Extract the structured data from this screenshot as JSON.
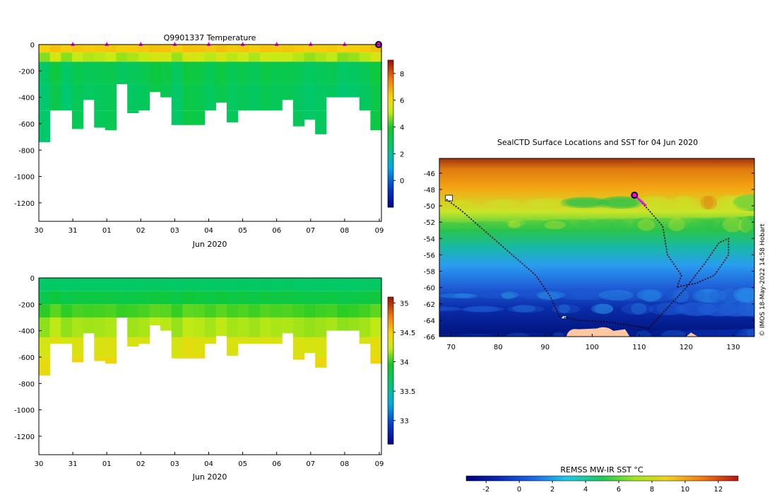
{
  "chart_data": [
    {
      "type": "heatmap",
      "title": "Q9901337  Temperature",
      "xlabel": "Jun 2020",
      "x_ticks": [
        "30",
        "31",
        "01",
        "02",
        "03",
        "04",
        "05",
        "06",
        "07",
        "08",
        "09"
      ],
      "y_ticks": [
        "0",
        "-200",
        "-400",
        "-600",
        "-800",
        "-1000",
        "-1200"
      ],
      "ylim": [
        -1340,
        0
      ],
      "profile_max_depth": [
        -740,
        -500,
        -500,
        -640,
        -420,
        -630,
        -650,
        -300,
        -520,
        -500,
        -360,
        -400,
        -610,
        -610,
        -610,
        -500,
        -440,
        -590,
        -500,
        -500,
        -500,
        -500,
        -420,
        -620,
        -570,
        -680,
        -400,
        -400,
        -400,
        -500,
        -650
      ],
      "surface_markers": [
        "31",
        "01",
        "02",
        "03",
        "04",
        "05",
        "06",
        "07",
        "08"
      ],
      "colorbar": {
        "ticks": [
          "0",
          "2",
          "4",
          "6",
          "8"
        ],
        "min": -2,
        "max": 9
      },
      "layers": [
        {
          "top": 0,
          "bottom": -60,
          "value": 6.5
        },
        {
          "top": -60,
          "bottom": -130,
          "value": 5.2
        },
        {
          "top": -130,
          "bottom": -300,
          "value": 3.2
        },
        {
          "top": -300,
          "bottom": -500,
          "value": 3.0
        },
        {
          "top": -500,
          "bottom": -800,
          "value": 3.1
        }
      ]
    },
    {
      "type": "heatmap",
      "title": "",
      "xlabel": "Jun 2020",
      "x_ticks": [
        "30",
        "31",
        "01",
        "02",
        "03",
        "04",
        "05",
        "06",
        "07",
        "08",
        "09"
      ],
      "y_ticks": [
        "0",
        "-200",
        "-400",
        "-600",
        "-800",
        "-1000",
        "-1200"
      ],
      "ylim": [
        -1340,
        0
      ],
      "colorbar": {
        "ticks": [
          "33",
          "33.5",
          "34",
          "34.5",
          "35"
        ],
        "min": 32.6,
        "max": 35.1
      },
      "layers": [
        {
          "top": 0,
          "bottom": -100,
          "value": 33.7
        },
        {
          "top": -100,
          "bottom": -200,
          "value": 33.85
        },
        {
          "top": -200,
          "bottom": -300,
          "value": 34.05
        },
        {
          "top": -300,
          "bottom": -450,
          "value": 34.2
        },
        {
          "top": -450,
          "bottom": -600,
          "value": 34.35
        },
        {
          "top": -600,
          "bottom": -800,
          "value": 34.45
        }
      ]
    },
    {
      "type": "heatmap",
      "title": "SealCTD Surface Locations and SST for 04 Jun 2020",
      "xlabel": "",
      "x_ticks": [
        "70",
        "80",
        "90",
        "100",
        "110",
        "120",
        "130"
      ],
      "y_ticks": [
        "-46",
        "-48",
        "-50",
        "-52",
        "-54",
        "-56",
        "-58",
        "-60",
        "-62",
        "-64",
        "-66"
      ],
      "xlim": [
        67.5,
        134.5
      ],
      "ylim": [
        -66,
        -44.2
      ],
      "current_position": {
        "lon": 109,
        "lat": -48.7
      },
      "track": [
        [
          69,
          -49.2
        ],
        [
          72,
          -50.5
        ],
        [
          76,
          -52.5
        ],
        [
          80,
          -54.5
        ],
        [
          84,
          -56.5
        ],
        [
          88,
          -58.5
        ],
        [
          91,
          -61
        ],
        [
          93,
          -63.5
        ],
        [
          97,
          -64
        ],
        [
          103,
          -64.2
        ],
        [
          108,
          -64.6
        ],
        [
          112,
          -65
        ],
        [
          116,
          -62.5
        ],
        [
          120,
          -60
        ],
        [
          124,
          -57
        ],
        [
          127,
          -54.5
        ],
        [
          129,
          -54
        ],
        [
          129,
          -56
        ],
        [
          126,
          -58.5
        ],
        [
          122,
          -59.5
        ],
        [
          119,
          -59.8
        ],
        [
          118,
          -60
        ],
        [
          119,
          -58.5
        ],
        [
          116,
          -56
        ],
        [
          115,
          -52.5
        ],
        [
          112,
          -50.5
        ],
        [
          109,
          -48.7
        ]
      ],
      "colorbar": {
        "label": "REMSS MW-IR SST °C",
        "ticks": [
          "-2",
          "0",
          "2",
          "4",
          "6",
          "8",
          "10",
          "12"
        ],
        "min": -3.2,
        "max": 13.2
      },
      "credit": "© IMOS 18-May-2022 14:58 Hobart"
    }
  ],
  "colors": {
    "land": "#ffc8a0",
    "marker": "#ff00ff"
  }
}
